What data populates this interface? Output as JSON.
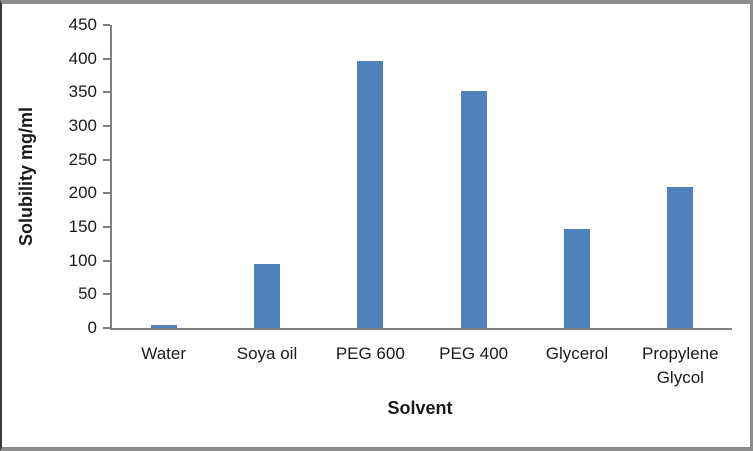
{
  "chart_data": {
    "type": "bar",
    "title": "",
    "categories": [
      "Water",
      "Soya oil",
      "PEG 600",
      "PEG 400",
      "Glycerol",
      "Propylene Glycol"
    ],
    "values": [
      4,
      95,
      397,
      352,
      147,
      210
    ],
    "xlabel": "Solvent",
    "ylabel": "Solubility mg/ml",
    "ylim": [
      0,
      450
    ],
    "yticks": [
      0,
      50,
      100,
      150,
      200,
      250,
      300,
      350,
      400,
      450
    ],
    "grid": false,
    "legend": false,
    "bar_color": "#4F81BD",
    "axis_color": "#808080",
    "text_color": "#1a1a1a",
    "frame_border_color": "#8c8c8c"
  }
}
